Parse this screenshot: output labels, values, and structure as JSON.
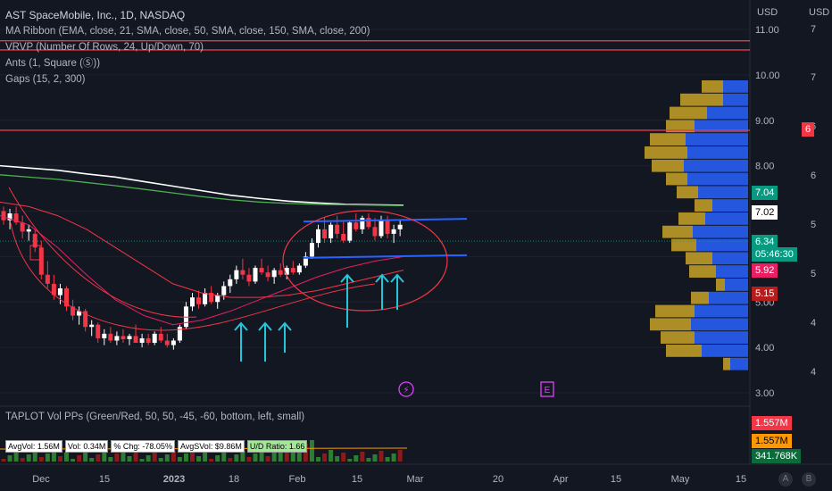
{
  "header": {
    "title": "AST SpaceMobile, Inc., 1D, NASDAQ",
    "indicators": [
      "MA Ribbon (EMA, close, 21, SMA, close, 50, SMA, close, 150, SMA, close, 200)",
      "VRVP (Number Of Rows, 24, Up/Down, 70)",
      "Ants (1, Square (Ⓢ))",
      "Gaps (15, 2, 300)"
    ]
  },
  "scales": {
    "left_currency": "USD",
    "right_currency": "USD",
    "main_ticks": [
      "11.00",
      "10.00",
      "9.00",
      "8.00",
      "7.00",
      "6.00",
      "5.00",
      "4.00",
      "3.00"
    ],
    "right_ticks": [
      "7",
      "7",
      "6",
      "6",
      "5",
      "5",
      "4",
      "4"
    ]
  },
  "price_tags": [
    {
      "label": "6",
      "bg": "#f23645",
      "fg": "#ffffff"
    },
    {
      "label": "7.04",
      "bg": "#089981",
      "fg": "#ffffff"
    },
    {
      "label": "7.02",
      "bg": "#ffffff",
      "fg": "#000000"
    },
    {
      "label": "6.34",
      "bg": "#089981",
      "fg": "#ffffff"
    },
    {
      "label": "05:46:30",
      "bg": "#089981",
      "fg": "#ffffff"
    },
    {
      "label": "5.92",
      "bg": "#e91e63",
      "fg": "#ffffff"
    },
    {
      "label": "5.15",
      "bg": "#b71c1c",
      "fg": "#ffffff"
    }
  ],
  "events": {
    "lightning": "⚡",
    "earnings": "E"
  },
  "volume_panel": {
    "title": "TAPLOT Vol PPs (Green/Red, 50, 50, -45, -60, bottom, left, small)",
    "stats": [
      {
        "label": "AvgVol: 1.56M",
        "highlight": false
      },
      {
        "label": "Vol: 0.34M",
        "highlight": false
      },
      {
        "label": "% Chg: -78.05%",
        "highlight": false
      },
      {
        "label": "AvgSVol: $9.86M",
        "highlight": false
      },
      {
        "label": "U/D Ratio: 1.66",
        "highlight": true
      }
    ],
    "tags": [
      {
        "label": "1.557M",
        "bg": "#f23645",
        "fg": "#ffffff"
      },
      {
        "label": "1.557M",
        "bg": "#ff9800",
        "fg": "#000000"
      },
      {
        "label": "341.768K",
        "bg": "#0c6b3b",
        "fg": "#ffffff"
      }
    ]
  },
  "x_axis": {
    "labels": [
      "Dec",
      "15",
      "2023",
      "18",
      "Feb",
      "15",
      "Mar",
      "20",
      "Apr",
      "15",
      "May",
      "15"
    ]
  },
  "footer": {
    "icons": [
      "A",
      "B"
    ]
  },
  "colors": {
    "up": "#ffffff",
    "down": "#f23645",
    "blue_candle": "#2962ff",
    "ema21": "#e91e63",
    "sma50": "#f23645",
    "sma150": "#4caf50",
    "sma200": "#ffffff",
    "channel": "#2962ff",
    "arrow": "#26c6da",
    "annotation": "#f23645",
    "vp_up": "#2962ff",
    "vp_down": "#c9a227",
    "hline": "#f23645"
  },
  "chart_data": {
    "type": "candlestick",
    "x_labels": [
      "Dec",
      "15",
      "2023",
      "18",
      "Feb",
      "15",
      "Mar",
      "20",
      "Apr",
      "15",
      "May",
      "15"
    ],
    "price_axis_ticks": [
      11,
      10,
      9,
      8,
      7,
      6,
      5,
      4,
      3
    ],
    "ylim": [
      2.85,
      11.25
    ],
    "horizontal_lines": [
      10.55,
      10.75,
      8.78
    ],
    "channel": {
      "upper": 6.85,
      "lower": 6.05
    },
    "ma_ribbon": {
      "sma200": [
        8.0,
        7.95,
        7.9,
        7.82,
        7.75,
        7.65,
        7.55,
        7.45,
        7.35,
        7.28,
        7.22,
        7.18,
        7.15,
        7.14,
        7.13
      ],
      "sma150": [
        7.8,
        7.75,
        7.7,
        7.63,
        7.56,
        7.48,
        7.4,
        7.32,
        7.25,
        7.2,
        7.17,
        7.15,
        7.14,
        7.13,
        7.12
      ],
      "ema21": [
        6.9,
        6.7,
        6.2,
        5.6,
        5.05,
        4.7,
        4.5,
        4.6,
        4.8,
        5.05,
        5.3,
        5.55,
        5.75,
        5.9,
        6.0
      ],
      "sma50": [
        7.2,
        7.1,
        6.9,
        6.6,
        6.2,
        5.8,
        5.4,
        5.2,
        5.1,
        5.1,
        5.15,
        5.25,
        5.4,
        5.55,
        5.7
      ]
    },
    "ohlc": [
      [
        7.0,
        7.1,
        6.7,
        6.8
      ],
      [
        6.8,
        7.05,
        6.6,
        6.95
      ],
      [
        6.95,
        7.1,
        6.7,
        6.75
      ],
      [
        6.75,
        6.9,
        6.4,
        6.55
      ],
      [
        6.55,
        6.7,
        6.35,
        6.6
      ],
      [
        6.5,
        6.6,
        6.1,
        6.2
      ],
      [
        6.2,
        6.35,
        5.5,
        5.6
      ],
      [
        5.6,
        5.9,
        5.3,
        5.4
      ],
      [
        5.4,
        5.6,
        5.05,
        5.15
      ],
      [
        5.15,
        5.4,
        4.95,
        5.3
      ],
      [
        5.3,
        5.35,
        4.8,
        4.9
      ],
      [
        4.9,
        5.05,
        4.6,
        4.7
      ],
      [
        4.7,
        4.9,
        4.5,
        4.8
      ],
      [
        4.8,
        4.85,
        4.35,
        4.45
      ],
      [
        4.45,
        4.6,
        4.25,
        4.5
      ],
      [
        4.5,
        4.55,
        4.1,
        4.2
      ],
      [
        4.2,
        4.4,
        4.05,
        4.3
      ],
      [
        4.3,
        4.45,
        4.1,
        4.15
      ],
      [
        4.15,
        4.35,
        4.05,
        4.25
      ],
      [
        4.25,
        4.4,
        4.1,
        4.18
      ],
      [
        4.18,
        4.3,
        4.05,
        4.25
      ],
      [
        4.25,
        4.5,
        4.1,
        4.1
      ],
      [
        4.1,
        4.3,
        4.0,
        4.2
      ],
      [
        4.2,
        4.3,
        4.05,
        4.1
      ],
      [
        4.1,
        4.35,
        4.05,
        4.3
      ],
      [
        4.3,
        4.45,
        4.1,
        4.15
      ],
      [
        4.15,
        4.3,
        4.0,
        4.05
      ],
      [
        4.05,
        4.2,
        3.95,
        4.15
      ],
      [
        4.15,
        4.5,
        4.1,
        4.45
      ],
      [
        4.45,
        5.0,
        4.4,
        4.9
      ],
      [
        4.9,
        5.2,
        4.8,
        5.1
      ],
      [
        5.1,
        5.25,
        4.85,
        4.95
      ],
      [
        4.95,
        5.3,
        4.9,
        5.2
      ],
      [
        5.2,
        5.35,
        4.95,
        5.0
      ],
      [
        5.0,
        5.2,
        4.85,
        5.15
      ],
      [
        5.15,
        5.45,
        5.05,
        5.35
      ],
      [
        5.35,
        5.6,
        5.2,
        5.5
      ],
      [
        5.5,
        5.8,
        5.4,
        5.7
      ],
      [
        5.7,
        5.95,
        5.5,
        5.6
      ],
      [
        5.6,
        5.75,
        5.35,
        5.45
      ],
      [
        5.45,
        5.8,
        5.4,
        5.75
      ],
      [
        5.75,
        5.95,
        5.6,
        5.65
      ],
      [
        5.65,
        5.8,
        5.45,
        5.55
      ],
      [
        5.55,
        5.75,
        5.4,
        5.7
      ],
      [
        5.7,
        5.85,
        5.55,
        5.6
      ],
      [
        5.6,
        5.8,
        5.5,
        5.75
      ],
      [
        5.75,
        5.9,
        5.6,
        5.65
      ],
      [
        5.65,
        5.85,
        5.6,
        5.8
      ],
      [
        5.8,
        6.1,
        5.75,
        6.0
      ],
      [
        6.0,
        6.4,
        5.95,
        6.3
      ],
      [
        6.3,
        6.7,
        6.2,
        6.6
      ],
      [
        6.6,
        6.85,
        6.3,
        6.4
      ],
      [
        6.4,
        6.75,
        6.3,
        6.7
      ],
      [
        6.7,
        6.9,
        6.4,
        6.5
      ],
      [
        6.5,
        6.8,
        6.3,
        6.35
      ],
      [
        6.35,
        6.8,
        6.3,
        6.75
      ],
      [
        6.75,
        6.95,
        6.55,
        6.6
      ],
      [
        6.6,
        6.9,
        6.5,
        6.85
      ],
      [
        6.85,
        6.95,
        6.6,
        6.65
      ],
      [
        6.65,
        6.85,
        6.35,
        6.45
      ],
      [
        6.45,
        6.9,
        6.4,
        6.8
      ],
      [
        6.8,
        6.9,
        6.4,
        6.5
      ],
      [
        6.5,
        6.7,
        6.3,
        6.6
      ],
      [
        6.6,
        6.8,
        6.45,
        6.7
      ]
    ]
  }
}
